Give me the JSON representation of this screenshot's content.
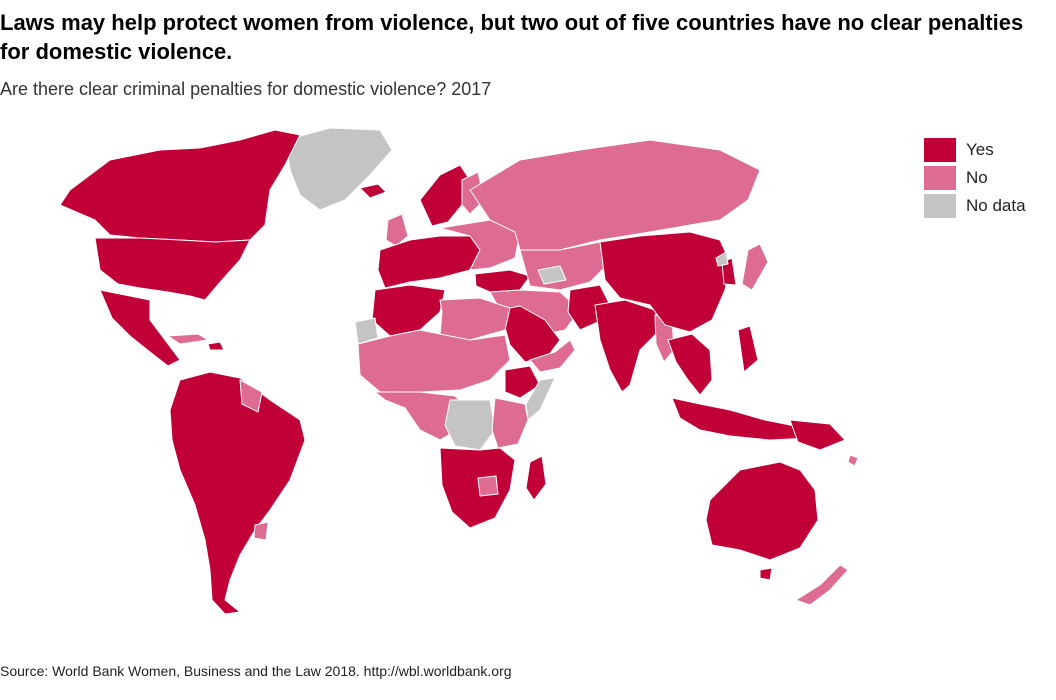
{
  "title": "Laws may help protect women from violence, but two out of five countries have no clear penalties for domestic violence.",
  "subtitle": "Are there clear criminal penalties for domestic violence? 2017",
  "legend": [
    {
      "label": "Yes",
      "color": "#c10037"
    },
    {
      "label": "No",
      "color": "#de6b91"
    },
    {
      "label": "No data",
      "color": "#c4c4c4"
    }
  ],
  "colors": {
    "yes": "#c10037",
    "no": "#de6b91",
    "no_data": "#c4c4c4",
    "border": "#ffffff"
  },
  "source": "Source: World Bank Women, Business and the Law 2018. http://wbl.worldbank.org"
}
